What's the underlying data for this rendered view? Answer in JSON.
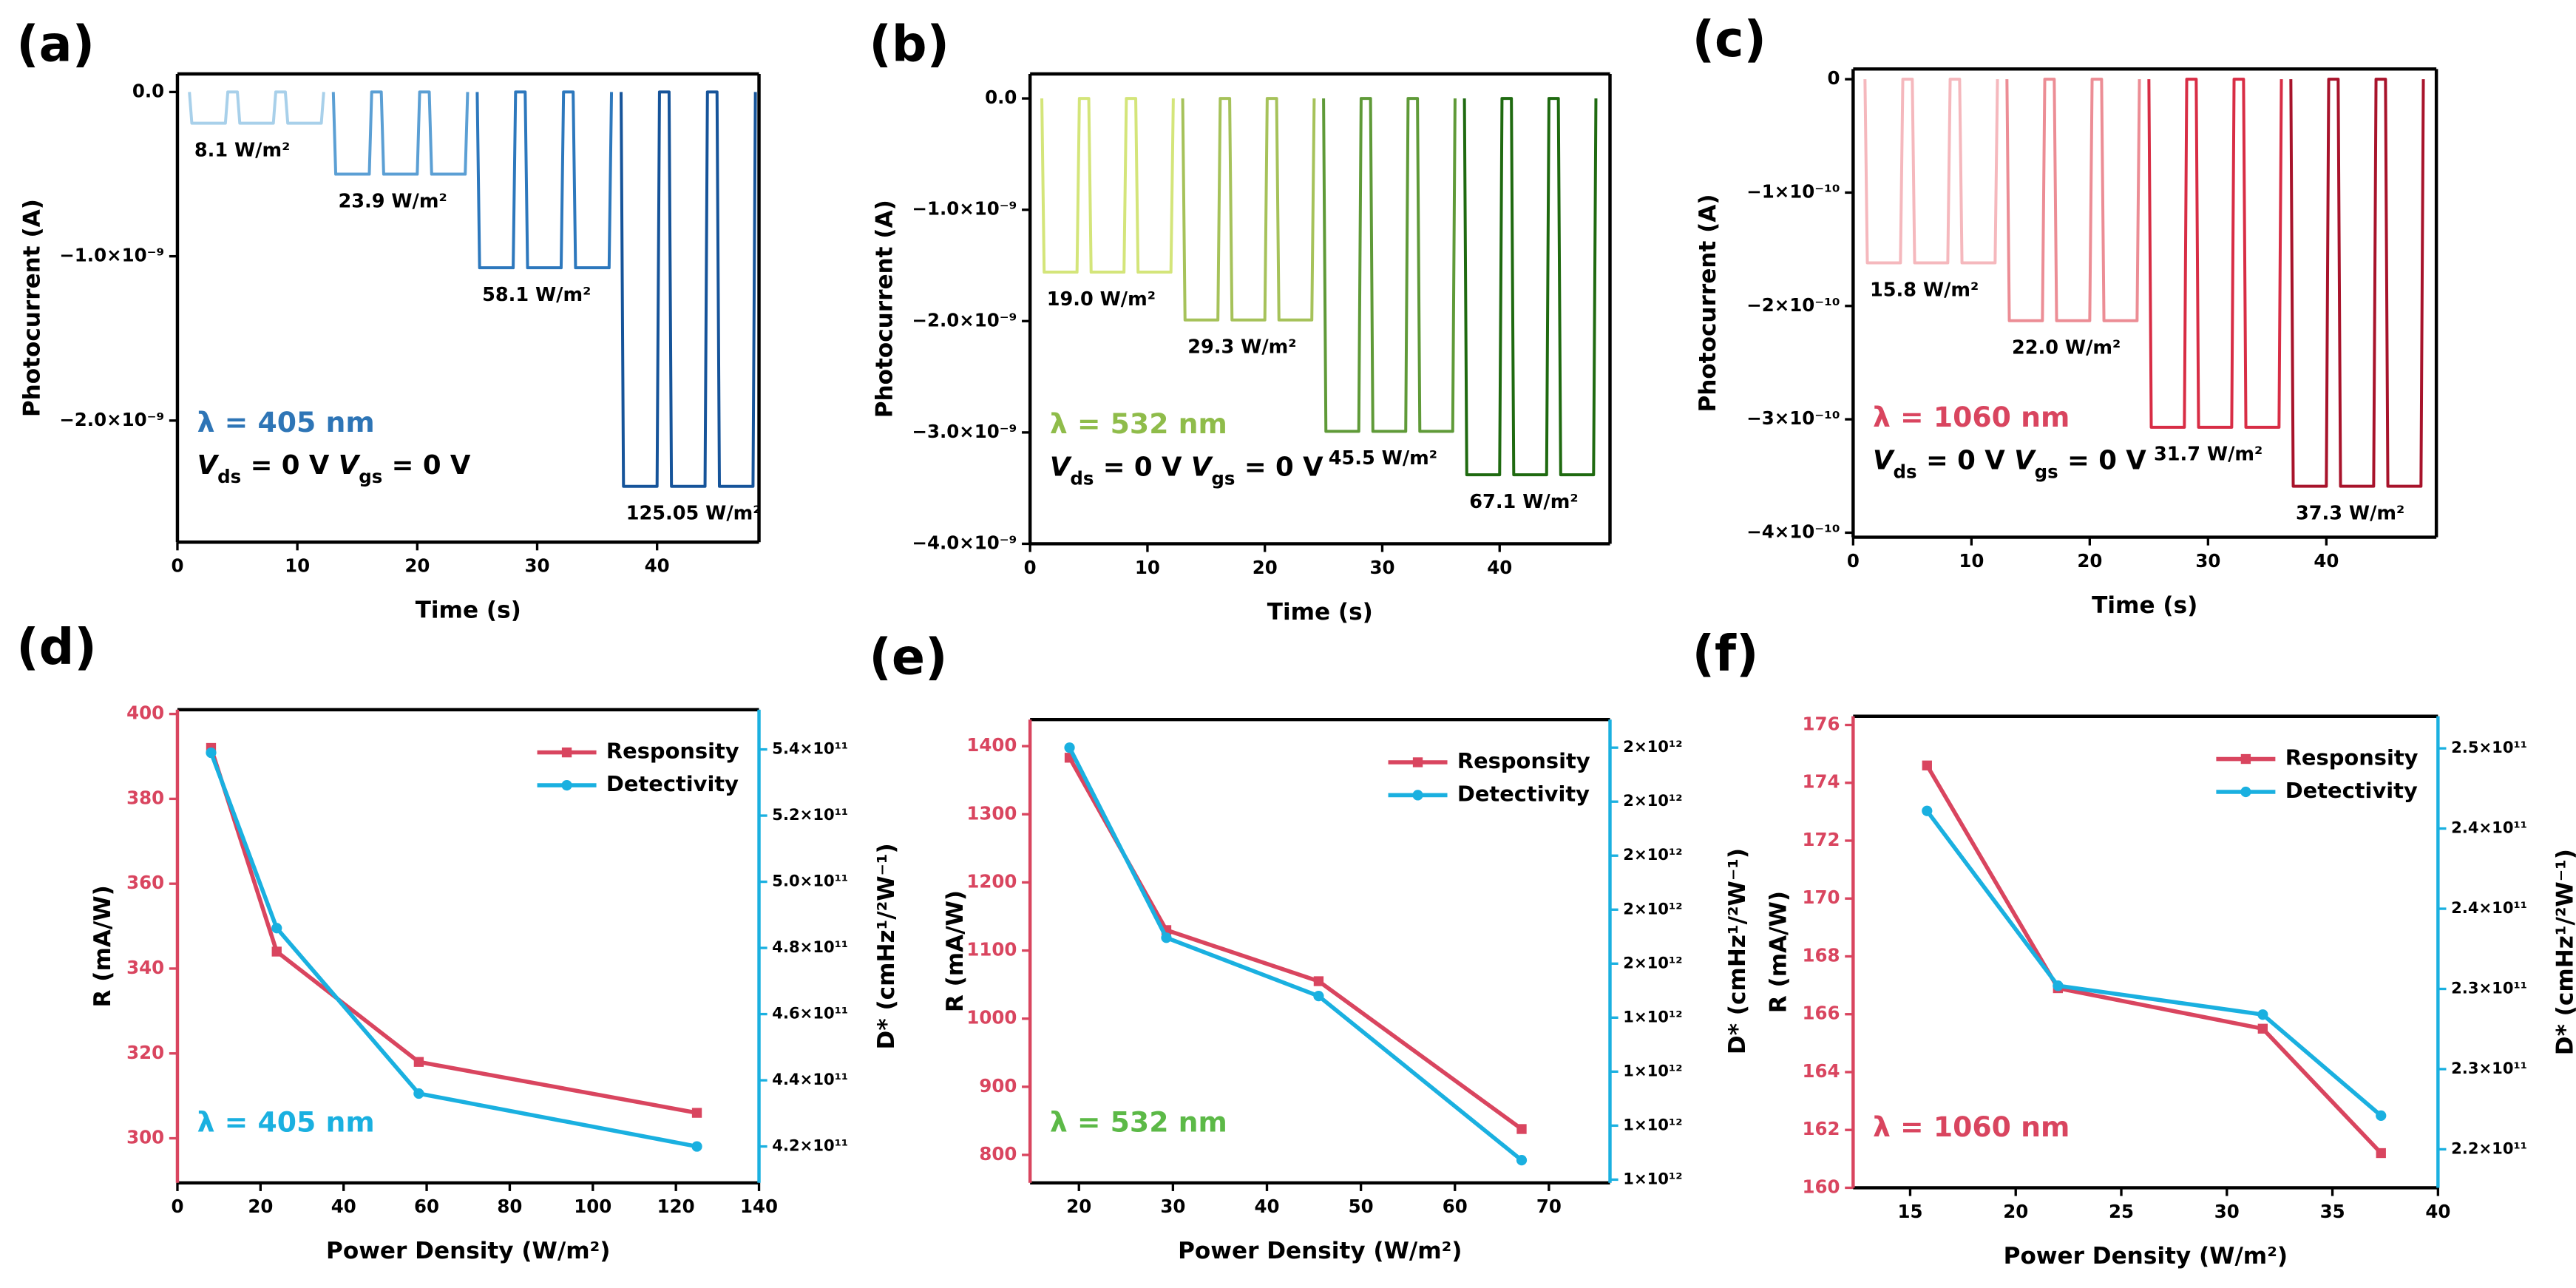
{
  "chart_data": [
    {
      "type": "line",
      "label": "(a)",
      "xlabel": "Time (s)",
      "ylabel": "Photocurrent (A)",
      "xlim": [
        0,
        48.5
      ],
      "xticks": [
        0,
        10,
        20,
        30,
        40
      ],
      "ylim": [
        -2.74e-09,
        1.1e-10
      ],
      "yticks": [
        {
          "value": 0,
          "label": "0.0"
        },
        {
          "value": -1e-09,
          "label": "−1.0×10⁻⁹"
        },
        {
          "value": -2e-09,
          "label": "−2.0×10⁻⁹"
        }
      ],
      "annotation": {
        "text": "λ = 405 nm",
        "color": "#2e75b6"
      },
      "bias": [
        "V",
        "ds",
        " = 0 V ",
        "V",
        "gs",
        " = 0 V"
      ],
      "series": [
        {
          "name": "8.1 W/m²",
          "color": "#a8d0ea",
          "x": [
            1,
            1.2,
            4,
            4.2,
            5,
            5.2,
            8,
            8.2,
            9,
            9.2,
            12,
            12.2
          ],
          "values": [
            0,
            -1.9e-10,
            -1.9e-10,
            0,
            0,
            -1.9e-10,
            -1.9e-10,
            0,
            0,
            -1.9e-10,
            -1.9e-10,
            0
          ]
        },
        {
          "name": "23.9 W/m²",
          "color": "#5b9fd4",
          "x": [
            13,
            13.2,
            16,
            16.2,
            17,
            17.2,
            20,
            20.2,
            21,
            21.2,
            24,
            24.2
          ],
          "values": [
            0,
            -5e-10,
            -5e-10,
            0,
            0,
            -5e-10,
            -5e-10,
            0,
            0,
            -5e-10,
            -5e-10,
            0
          ]
        },
        {
          "name": "58.1 W/m²",
          "color": "#2d78bd",
          "x": [
            25,
            25.2,
            28,
            28.2,
            29,
            29.2,
            32,
            32.2,
            33,
            33.2,
            36,
            36.2
          ],
          "values": [
            0,
            -1.07e-09,
            -1.07e-09,
            0,
            0,
            -1.07e-09,
            -1.07e-09,
            0,
            0,
            -1.07e-09,
            -1.07e-09,
            0
          ]
        },
        {
          "name": "125.05 W/m²",
          "color": "#16549a",
          "x": [
            37,
            37.2,
            40,
            40.2,
            41,
            41.2,
            44,
            44.2,
            45,
            45.2,
            48,
            48.2
          ],
          "values": [
            0,
            -2.4e-09,
            -2.4e-09,
            0,
            0,
            -2.4e-09,
            -2.4e-09,
            0,
            0,
            -2.4e-09,
            -2.4e-09,
            0
          ]
        }
      ]
    },
    {
      "type": "line",
      "label": "(b)",
      "xlabel": "Time (s)",
      "ylabel": "Photocurrent (A)",
      "xlim": [
        0,
        49.4
      ],
      "xticks": [
        0,
        10,
        20,
        30,
        40
      ],
      "ylim": [
        -4e-09,
        2.2e-10
      ],
      "yticks": [
        {
          "value": 0,
          "label": "0.0"
        },
        {
          "value": -1e-09,
          "label": "−1.0×10⁻⁹"
        },
        {
          "value": -2e-09,
          "label": "−2.0×10⁻⁹"
        },
        {
          "value": -3e-09,
          "label": "−3.0×10⁻⁹"
        },
        {
          "value": -4e-09,
          "label": "−4.0×10⁻⁹"
        }
      ],
      "annotation": {
        "text": "λ = 532 nm",
        "color": "#8fbc4a"
      },
      "bias": [
        "V",
        "ds",
        " = 0 V ",
        "V",
        "gs",
        " = 0 V"
      ],
      "series": [
        {
          "name": "19.0 W/m²",
          "color": "#d4e57a",
          "x": [
            1,
            1.2,
            4,
            4.2,
            5,
            5.2,
            8,
            8.2,
            9,
            9.2,
            12,
            12.2
          ],
          "values": [
            0,
            -1.56e-09,
            -1.56e-09,
            0,
            0,
            -1.56e-09,
            -1.56e-09,
            0,
            0,
            -1.56e-09,
            -1.56e-09,
            0
          ]
        },
        {
          "name": "29.3 W/m²",
          "color": "#a6c25a",
          "x": [
            13,
            13.2,
            16,
            16.2,
            17,
            17.2,
            20,
            20.2,
            21,
            21.2,
            24,
            24.2
          ],
          "values": [
            0,
            -1.99e-09,
            -1.99e-09,
            0,
            0,
            -1.99e-09,
            -1.99e-09,
            0,
            0,
            -1.99e-09,
            -1.99e-09,
            0
          ]
        },
        {
          "name": "45.5 W/m²",
          "color": "#5f9a38",
          "x": [
            25,
            25.2,
            28,
            28.2,
            29,
            29.2,
            32,
            32.2,
            33,
            33.2,
            36,
            36.2
          ],
          "values": [
            0,
            -2.99e-09,
            -2.99e-09,
            0,
            0,
            -2.99e-09,
            -2.99e-09,
            0,
            0,
            -2.99e-09,
            -2.99e-09,
            0
          ]
        },
        {
          "name": "67.1 W/m²",
          "color": "#1f6a10",
          "x": [
            37,
            37.2,
            40,
            40.2,
            41,
            41.2,
            44,
            44.2,
            45,
            45.2,
            48,
            48.2
          ],
          "values": [
            0,
            -3.38e-09,
            -3.38e-09,
            0,
            0,
            -3.38e-09,
            -3.38e-09,
            0,
            0,
            -3.38e-09,
            -3.38e-09,
            0
          ]
        }
      ]
    },
    {
      "type": "line",
      "label": "(c)",
      "xlabel": "Time (s)",
      "ylabel": "Photocurrent (A)",
      "xlim": [
        0,
        49.3
      ],
      "xticks": [
        0,
        10,
        20,
        30,
        40
      ],
      "ylim": [
        -4.04e-10,
        9e-12
      ],
      "yticks": [
        0,
        {
          "value": -1e-10,
          "label": "−1×10⁻¹⁰"
        },
        {
          "value": -2e-10,
          "label": "−2×10⁻¹⁰"
        },
        {
          "value": -3e-10,
          "label": "−3×10⁻¹⁰"
        },
        {
          "value": -4e-10,
          "label": "−4×10⁻¹⁰"
        }
      ],
      "annotation": {
        "text": "λ = 1060 nm",
        "color": "#d9455f"
      },
      "bias": [
        "V",
        "ds",
        " = 0 V ",
        "V",
        "gs",
        " = 0 V"
      ],
      "series": [
        {
          "name": "15.8 W/m²",
          "color": "#f5b8bd",
          "x": [
            1,
            1.2,
            4,
            4.2,
            5,
            5.2,
            8,
            8.2,
            9,
            9.2,
            12,
            12.2
          ],
          "values": [
            0,
            -1.62e-10,
            -1.62e-10,
            0,
            0,
            -1.62e-10,
            -1.62e-10,
            0,
            0,
            -1.62e-10,
            -1.62e-10,
            0
          ]
        },
        {
          "name": "22.0 W/m²",
          "color": "#ec8d95",
          "x": [
            13,
            13.2,
            16,
            16.2,
            17,
            17.2,
            20,
            20.2,
            21,
            21.2,
            24,
            24.2
          ],
          "values": [
            0,
            -2.13e-10,
            -2.13e-10,
            0,
            0,
            -2.13e-10,
            -2.13e-10,
            0,
            0,
            -2.13e-10,
            -2.13e-10,
            0
          ]
        },
        {
          "name": "31.7 W/m²",
          "color": "#d82d45",
          "x": [
            25,
            25.2,
            28,
            28.2,
            29,
            29.2,
            32,
            32.2,
            33,
            33.2,
            36,
            36.2
          ],
          "values": [
            0,
            -3.07e-10,
            -3.07e-10,
            0,
            0,
            -3.07e-10,
            -3.07e-10,
            0,
            0,
            -3.07e-10,
            -3.07e-10,
            0
          ]
        },
        {
          "name": "37.3 W/m²",
          "color": "#a8132b",
          "x": [
            37,
            37.2,
            40,
            40.2,
            41,
            41.2,
            44,
            44.2,
            45,
            45.2,
            48,
            48.2
          ],
          "values": [
            0,
            -3.59e-10,
            -3.59e-10,
            0,
            0,
            -3.59e-10,
            -3.59e-10,
            0,
            0,
            -3.59e-10,
            -3.59e-10,
            0
          ]
        }
      ]
    },
    {
      "type": "line",
      "label": "(d)",
      "xlabel": "Power Density (W/m²)",
      "ylabel": "R (mA/W)",
      "y2label": "D* (cmHz¹/²W⁻¹)",
      "x": [
        8.1,
        23.9,
        58.1,
        125.05
      ],
      "xlim": [
        0,
        140
      ],
      "xticks": [
        0,
        20,
        40,
        60,
        80,
        100,
        120,
        140
      ],
      "ylim": [
        289.5,
        401
      ],
      "yticks": [
        300,
        320,
        340,
        360,
        380,
        400
      ],
      "y2lim": [
        409000000000.0,
        552000000000.0
      ],
      "y2ticks": [
        {
          "value": 420000000000.0,
          "label": "4.2×10¹¹"
        },
        {
          "value": 440000000000.0,
          "label": "4.4×10¹¹"
        },
        {
          "value": 460000000000.0,
          "label": "4.6×10¹¹"
        },
        {
          "value": 480000000000.0,
          "label": "4.8×10¹¹"
        },
        {
          "value": 500000000000.0,
          "label": "5.0×10¹¹"
        },
        {
          "value": 520000000000.0,
          "label": "5.2×10¹¹"
        },
        {
          "value": 540000000000.0,
          "label": "5.4×10¹¹"
        }
      ],
      "legend": "upper right",
      "annotation": {
        "text": "λ = 405 nm",
        "color": "#1ab0e0"
      },
      "series": [
        {
          "name": "Responsity",
          "color": "#d9455f",
          "marker": "square",
          "values": [
            392,
            344,
            318,
            306
          ]
        },
        {
          "name": "Detectivity",
          "color": "#1ab0e0",
          "marker": "circle",
          "axis": "y2",
          "values": [
            539000000000.0,
            486000000000.0,
            436000000000.0,
            420000000000.0
          ]
        }
      ]
    },
    {
      "type": "line",
      "label": "(e)",
      "xlabel": "Power Density (W/m²)",
      "ylabel": "R (mA/W)",
      "y2label": "D* (cmHz¹/²W⁻¹)",
      "x": [
        19.0,
        29.3,
        45.5,
        67.1
      ],
      "xlim": [
        14.8,
        76.5
      ],
      "xticks": [
        20,
        30,
        40,
        50,
        60,
        70
      ],
      "ylim": [
        759,
        1439
      ],
      "yticks": [
        800,
        900,
        1000,
        1100,
        1200,
        1300,
        1400
      ],
      "y2lim": [
        1094000000000.0,
        1952000000000.0
      ],
      "y2ticks": [
        {
          "value": 1100000000000.0,
          "label": "1×10¹²"
        },
        {
          "value": 1200000000000.0,
          "label": "1×10¹²"
        },
        {
          "value": 1300000000000.0,
          "label": "1×10¹²"
        },
        {
          "value": 1400000000000.0,
          "label": "1×10¹²"
        },
        {
          "value": 1500000000000.0,
          "label": "2×10¹²"
        },
        {
          "value": 1600000000000.0,
          "label": "2×10¹²"
        },
        {
          "value": 1700000000000.0,
          "label": "2×10¹²"
        },
        {
          "value": 1800000000000.0,
          "label": "2×10¹²"
        },
        {
          "value": 1900000000000.0,
          "label": "2×10¹²"
        }
      ],
      "legend": "upper right",
      "annotation": {
        "text": "λ = 532 nm",
        "color": "#5cb947"
      },
      "series": [
        {
          "name": "Responsity",
          "color": "#d9455f",
          "marker": "square",
          "values": [
            1383,
            1130,
            1055,
            838
          ]
        },
        {
          "name": "Detectivity",
          "color": "#1ab0e0",
          "marker": "circle",
          "axis": "y2",
          "values": [
            1900000000000.0,
            1548000000000.0,
            1440000000000.0,
            1136000000000.0
          ]
        }
      ]
    },
    {
      "type": "line",
      "label": "(f)",
      "xlabel": "Power Density (W/m²)",
      "ylabel": "R (mA/W)",
      "y2label": "D* (cmHz¹/²W⁻¹)",
      "x": [
        15.8,
        22.0,
        31.7,
        37.3
      ],
      "xlim": [
        12.3,
        40
      ],
      "xticks": [
        15,
        20,
        25,
        30,
        35,
        40
      ],
      "ylim": [
        160,
        176.3
      ],
      "yticks": [
        160,
        162,
        164,
        166,
        168,
        170,
        172,
        174,
        176
      ],
      "y2lim": [
        219600000000.0,
        249000000000.0
      ],
      "y2ticks": [
        {
          "value": 222000000000.0,
          "label": "2.2×10¹¹"
        },
        {
          "value": 227000000000.0,
          "label": "2.3×10¹¹"
        },
        {
          "value": 232000000000.0,
          "label": "2.3×10¹¹"
        },
        {
          "value": 237000000000.0,
          "label": "2.4×10¹¹"
        },
        {
          "value": 242000000000.0,
          "label": "2.4×10¹¹"
        },
        {
          "value": 247000000000.0,
          "label": "2.5×10¹¹"
        }
      ],
      "legend": "upper right",
      "annotation": {
        "text": "λ = 1060 nm",
        "color": "#d9455f"
      },
      "series": [
        {
          "name": "Responsity",
          "color": "#d9455f",
          "marker": "square",
          "values": [
            174.6,
            166.9,
            165.5,
            161.2
          ]
        },
        {
          "name": "Detectivity",
          "color": "#1ab0e0",
          "marker": "circle",
          "axis": "y2",
          "values": [
            243100000000.0,
            232200000000.0,
            230400000000.0,
            224100000000.0
          ]
        }
      ]
    }
  ]
}
